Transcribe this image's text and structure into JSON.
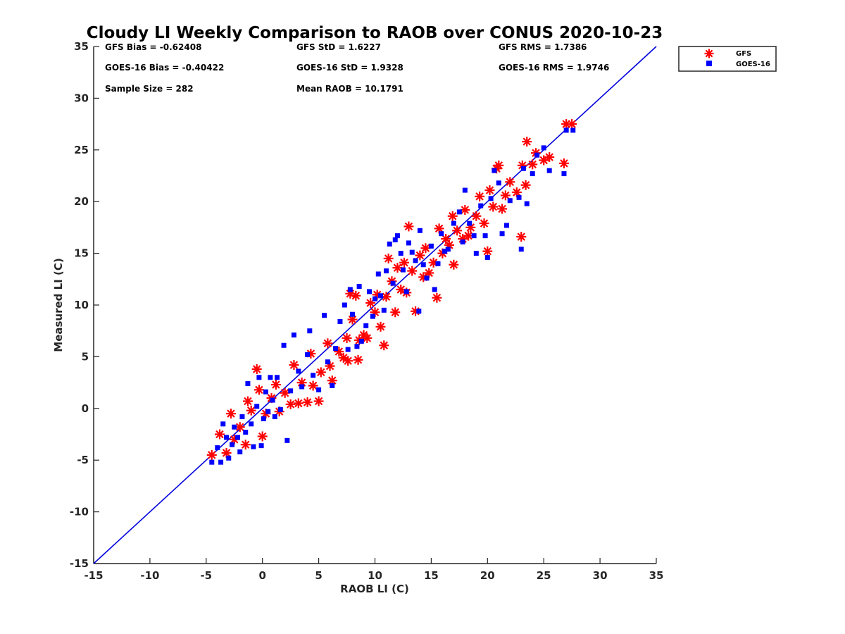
{
  "chart_data": {
    "type": "scatter",
    "title": "Cloudy LI Weekly Comparison to RAOB over CONUS 2020-10-23",
    "xlabel": "RAOB LI (C)",
    "ylabel": "Measured LI (C)",
    "xlim": [
      -15,
      35
    ],
    "ylim": [
      -15,
      35
    ],
    "xticks": [
      -15,
      -10,
      -5,
      0,
      5,
      10,
      15,
      20,
      25,
      30,
      35
    ],
    "yticks": [
      -15,
      -10,
      -5,
      0,
      5,
      10,
      15,
      20,
      25,
      30,
      35
    ],
    "grid": false,
    "legend_position": "top-right-outside",
    "reference_line": {
      "x": [
        -15,
        35
      ],
      "y": [
        -15,
        35
      ],
      "color": "#0000dd"
    },
    "stats": {
      "gfs_bias": "GFS Bias = -0.62408",
      "gfs_std": "GFS StD = 1.6227",
      "gfs_rms": "GFS RMS = 1.7386",
      "goes_bias": "GOES-16 Bias = -0.40422",
      "goes_std": "GOES-16 StD = 1.9328",
      "goes_rms": "GOES-16 RMS = 1.9746",
      "sample_size": "Sample Size = 282",
      "mean_raob": "Mean RAOB = 10.1791"
    },
    "series": [
      {
        "name": "GFS",
        "marker": "asterisk",
        "color": "#ff0000",
        "points": [
          [
            -4.5,
            -4.5
          ],
          [
            -3.8,
            -2.5
          ],
          [
            -3.2,
            -4.3
          ],
          [
            -2.8,
            -0.5
          ],
          [
            -2.5,
            -3.0
          ],
          [
            -2.0,
            -1.8
          ],
          [
            -1.5,
            -3.5
          ],
          [
            -1.3,
            0.7
          ],
          [
            -1.0,
            -0.2
          ],
          [
            -0.5,
            3.8
          ],
          [
            -0.3,
            1.8
          ],
          [
            0.0,
            -2.7
          ],
          [
            0.3,
            -0.5
          ],
          [
            0.8,
            1.0
          ],
          [
            1.2,
            2.3
          ],
          [
            1.5,
            -0.3
          ],
          [
            2.0,
            1.5
          ],
          [
            2.5,
            0.4
          ],
          [
            2.8,
            4.2
          ],
          [
            3.2,
            0.5
          ],
          [
            3.5,
            2.5
          ],
          [
            4.0,
            0.6
          ],
          [
            4.3,
            5.3
          ],
          [
            4.5,
            2.2
          ],
          [
            5.0,
            0.7
          ],
          [
            5.2,
            3.5
          ],
          [
            5.8,
            6.3
          ],
          [
            6.0,
            4.1
          ],
          [
            6.2,
            2.7
          ],
          [
            6.8,
            5.5
          ],
          [
            7.2,
            4.9
          ],
          [
            7.5,
            6.8
          ],
          [
            7.6,
            4.6
          ],
          [
            7.8,
            11.1
          ],
          [
            8.0,
            8.6
          ],
          [
            8.3,
            10.9
          ],
          [
            8.5,
            4.7
          ],
          [
            8.6,
            6.6
          ],
          [
            9.0,
            7.1
          ],
          [
            9.3,
            6.8
          ],
          [
            9.6,
            10.2
          ],
          [
            10.0,
            9.3
          ],
          [
            10.2,
            11.0
          ],
          [
            10.5,
            7.9
          ],
          [
            10.8,
            6.1
          ],
          [
            11.0,
            10.8
          ],
          [
            11.2,
            14.5
          ],
          [
            11.5,
            12.3
          ],
          [
            11.8,
            9.3
          ],
          [
            12.0,
            13.6
          ],
          [
            12.3,
            11.5
          ],
          [
            12.6,
            14.1
          ],
          [
            12.8,
            11.2
          ],
          [
            13.0,
            17.6
          ],
          [
            13.3,
            13.3
          ],
          [
            13.6,
            9.4
          ],
          [
            14.0,
            14.8
          ],
          [
            14.3,
            12.7
          ],
          [
            14.5,
            15.5
          ],
          [
            14.8,
            13.1
          ],
          [
            15.2,
            14.1
          ],
          [
            15.5,
            10.7
          ],
          [
            15.7,
            17.4
          ],
          [
            16.0,
            15.0
          ],
          [
            16.3,
            16.4
          ],
          [
            16.6,
            15.8
          ],
          [
            16.9,
            18.6
          ],
          [
            17.0,
            13.9
          ],
          [
            17.3,
            17.2
          ],
          [
            17.8,
            16.4
          ],
          [
            18.0,
            19.2
          ],
          [
            18.3,
            16.7
          ],
          [
            18.5,
            17.5
          ],
          [
            19.0,
            18.6
          ],
          [
            19.3,
            20.5
          ],
          [
            19.7,
            17.9
          ],
          [
            20.0,
            15.2
          ],
          [
            20.2,
            21.1
          ],
          [
            20.5,
            19.5
          ],
          [
            20.8,
            23.2
          ],
          [
            21.0,
            23.5
          ],
          [
            21.3,
            19.3
          ],
          [
            21.6,
            20.6
          ],
          [
            22.0,
            21.9
          ],
          [
            22.6,
            20.9
          ],
          [
            23.0,
            16.6
          ],
          [
            23.1,
            23.5
          ],
          [
            23.4,
            21.6
          ],
          [
            23.5,
            25.8
          ],
          [
            24.0,
            23.6
          ],
          [
            24.3,
            24.7
          ],
          [
            25.0,
            24.0
          ],
          [
            25.5,
            24.3
          ],
          [
            26.8,
            23.7
          ],
          [
            27.0,
            27.5
          ],
          [
            27.5,
            27.5
          ]
        ]
      },
      {
        "name": "GOES-16",
        "marker": "square",
        "color": "#0000ff",
        "points": [
          [
            -4.5,
            -5.2
          ],
          [
            -4.0,
            -3.8
          ],
          [
            -3.7,
            -5.2
          ],
          [
            -3.5,
            -1.5
          ],
          [
            -3.2,
            -2.8
          ],
          [
            -3.0,
            -4.8
          ],
          [
            -2.7,
            -3.5
          ],
          [
            -2.5,
            -1.8
          ],
          [
            -2.2,
            -2.8
          ],
          [
            -2.0,
            -4.2
          ],
          [
            -1.8,
            -0.8
          ],
          [
            -1.5,
            -2.3
          ],
          [
            -1.3,
            2.4
          ],
          [
            -1.0,
            -1.5
          ],
          [
            -0.8,
            -3.7
          ],
          [
            -0.5,
            0.2
          ],
          [
            -0.3,
            3.0
          ],
          [
            -0.1,
            -3.6
          ],
          [
            0.1,
            -1.0
          ],
          [
            0.3,
            1.6
          ],
          [
            0.5,
            -0.3
          ],
          [
            0.7,
            3.0
          ],
          [
            0.9,
            0.8
          ],
          [
            1.1,
            -0.8
          ],
          [
            1.3,
            3.0
          ],
          [
            1.6,
            -0.1
          ],
          [
            1.9,
            6.1
          ],
          [
            2.2,
            -3.1
          ],
          [
            2.5,
            1.7
          ],
          [
            2.8,
            7.1
          ],
          [
            3.2,
            3.6
          ],
          [
            3.5,
            2.1
          ],
          [
            4.0,
            5.2
          ],
          [
            4.2,
            7.5
          ],
          [
            4.5,
            3.2
          ],
          [
            5.0,
            1.8
          ],
          [
            5.5,
            9.0
          ],
          [
            5.8,
            4.5
          ],
          [
            6.2,
            2.2
          ],
          [
            6.5,
            5.8
          ],
          [
            6.9,
            8.4
          ],
          [
            7.3,
            10.0
          ],
          [
            7.6,
            5.7
          ],
          [
            7.8,
            11.5
          ],
          [
            8.0,
            9.1
          ],
          [
            8.4,
            6.0
          ],
          [
            8.6,
            11.8
          ],
          [
            8.8,
            6.5
          ],
          [
            9.2,
            8.0
          ],
          [
            9.5,
            11.3
          ],
          [
            9.8,
            8.9
          ],
          [
            10.0,
            10.6
          ],
          [
            10.3,
            13.0
          ],
          [
            10.5,
            10.9
          ],
          [
            10.8,
            9.5
          ],
          [
            11.0,
            13.3
          ],
          [
            11.3,
            15.9
          ],
          [
            11.6,
            12.1
          ],
          [
            11.8,
            16.3
          ],
          [
            12.0,
            16.7
          ],
          [
            12.3,
            15.0
          ],
          [
            12.5,
            13.4
          ],
          [
            12.8,
            11.3
          ],
          [
            13.0,
            16.0
          ],
          [
            13.3,
            15.1
          ],
          [
            13.6,
            14.3
          ],
          [
            13.9,
            9.4
          ],
          [
            14.0,
            17.2
          ],
          [
            14.3,
            13.9
          ],
          [
            14.6,
            12.6
          ],
          [
            15.0,
            15.7
          ],
          [
            15.3,
            11.5
          ],
          [
            15.6,
            14.0
          ],
          [
            15.9,
            16.9
          ],
          [
            16.2,
            15.2
          ],
          [
            16.5,
            15.4
          ],
          [
            17.0,
            17.9
          ],
          [
            17.5,
            19.0
          ],
          [
            17.8,
            16.1
          ],
          [
            18.0,
            21.1
          ],
          [
            18.4,
            17.9
          ],
          [
            18.8,
            16.7
          ],
          [
            19.0,
            15.0
          ],
          [
            19.4,
            19.6
          ],
          [
            19.8,
            16.7
          ],
          [
            20.0,
            14.6
          ],
          [
            20.3,
            20.3
          ],
          [
            20.6,
            23.0
          ],
          [
            21.0,
            21.8
          ],
          [
            21.3,
            16.9
          ],
          [
            21.7,
            17.7
          ],
          [
            22.0,
            20.1
          ],
          [
            22.8,
            20.4
          ],
          [
            23.0,
            15.4
          ],
          [
            23.2,
            23.2
          ],
          [
            23.5,
            19.8
          ],
          [
            24.0,
            22.7
          ],
          [
            24.4,
            24.5
          ],
          [
            25.0,
            25.2
          ],
          [
            25.5,
            23.0
          ],
          [
            26.8,
            22.7
          ],
          [
            27.0,
            26.9
          ],
          [
            27.6,
            26.9
          ]
        ]
      }
    ]
  }
}
